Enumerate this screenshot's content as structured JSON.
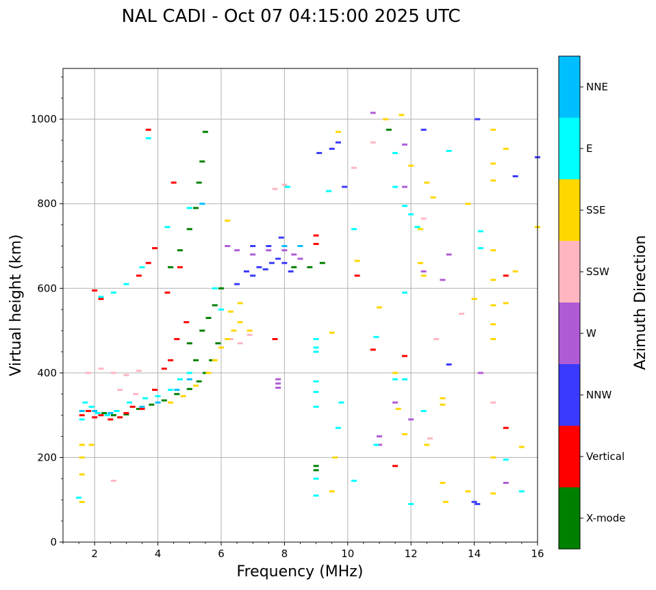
{
  "chart_data": {
    "type": "scatter",
    "title": "NAL CADI - Oct 07 04:15:00 2025 UTC",
    "xlabel": "Frequency (MHz)",
    "ylabel": "Virtual height (km)",
    "xlim": [
      1,
      16
    ],
    "ylim": [
      0,
      1120
    ],
    "x_ticks": [
      2,
      4,
      6,
      8,
      10,
      12,
      14,
      16
    ],
    "y_ticks": [
      0,
      200,
      400,
      600,
      800,
      1000
    ],
    "grid": true,
    "colorbar": {
      "label": "Azimuth Direction",
      "categories": [
        {
          "name": "X-mode",
          "color": "#008000"
        },
        {
          "name": "Vertical",
          "color": "#ff0000"
        },
        {
          "name": "NNW",
          "color": "#3a3aff"
        },
        {
          "name": "W",
          "color": "#b05bd6"
        },
        {
          "name": "SSW",
          "color": "#ffb6c1"
        },
        {
          "name": "SSE",
          "color": "#ffd700"
        },
        {
          "name": "E",
          "color": "#00ffff"
        },
        {
          "name": "NNE",
          "color": "#00bfff"
        }
      ]
    },
    "series": [
      {
        "name": "X-mode",
        "points": [
          [
            2.3,
            305
          ],
          [
            2.6,
            300
          ],
          [
            3.0,
            302
          ],
          [
            3.4,
            315
          ],
          [
            3.8,
            325
          ],
          [
            4.2,
            335
          ],
          [
            4.6,
            350
          ],
          [
            5.0,
            362
          ],
          [
            5.3,
            380
          ],
          [
            5.5,
            400
          ],
          [
            5.7,
            430
          ],
          [
            5.9,
            470
          ],
          [
            5.2,
            430
          ],
          [
            5.0,
            470
          ],
          [
            5.4,
            500
          ],
          [
            5.6,
            530
          ],
          [
            5.8,
            560
          ],
          [
            6.0,
            600
          ],
          [
            4.4,
            650
          ],
          [
            4.7,
            690
          ],
          [
            5.0,
            740
          ],
          [
            5.2,
            790
          ],
          [
            5.3,
            850
          ],
          [
            5.4,
            900
          ],
          [
            5.5,
            970
          ],
          [
            8.3,
            650
          ],
          [
            8.8,
            650
          ],
          [
            9.2,
            660
          ],
          [
            9.0,
            180
          ],
          [
            9.0,
            170
          ],
          [
            11.3,
            975
          ]
        ]
      },
      {
        "name": "Vertical",
        "points": [
          [
            1.6,
            300
          ],
          [
            1.8,
            310
          ],
          [
            2.0,
            295
          ],
          [
            2.2,
            300
          ],
          [
            2.5,
            290
          ],
          [
            2.8,
            295
          ],
          [
            3.0,
            305
          ],
          [
            3.2,
            320
          ],
          [
            3.5,
            315
          ],
          [
            3.9,
            360
          ],
          [
            4.2,
            410
          ],
          [
            4.4,
            430
          ],
          [
            4.6,
            480
          ],
          [
            4.9,
            520
          ],
          [
            4.3,
            590
          ],
          [
            4.7,
            650
          ],
          [
            3.4,
            630
          ],
          [
            3.7,
            660
          ],
          [
            3.9,
            695
          ],
          [
            3.7,
            975
          ],
          [
            4.5,
            850
          ],
          [
            7.7,
            480
          ],
          [
            9.0,
            725
          ],
          [
            9.0,
            705
          ],
          [
            10.8,
            455
          ],
          [
            11.8,
            440
          ],
          [
            11.5,
            180
          ],
          [
            15.0,
            270
          ],
          [
            15.0,
            630
          ],
          [
            10.3,
            630
          ],
          [
            2.0,
            595
          ],
          [
            2.2,
            575
          ]
        ]
      },
      {
        "name": "NNW",
        "points": [
          [
            6.8,
            640
          ],
          [
            7.0,
            630
          ],
          [
            7.2,
            650
          ],
          [
            7.4,
            645
          ],
          [
            7.6,
            660
          ],
          [
            7.8,
            670
          ],
          [
            8.0,
            660
          ],
          [
            8.2,
            640
          ],
          [
            6.5,
            610
          ],
          [
            7.0,
            700
          ],
          [
            7.5,
            700
          ],
          [
            7.9,
            720
          ],
          [
            9.1,
            920
          ],
          [
            9.5,
            930
          ],
          [
            9.7,
            945
          ],
          [
            9.9,
            840
          ],
          [
            12.4,
            975
          ],
          [
            14.1,
            1000
          ],
          [
            15.3,
            865
          ],
          [
            13.2,
            420
          ],
          [
            14.0,
            95
          ],
          [
            14.1,
            90
          ],
          [
            16.0,
            910
          ]
        ]
      },
      {
        "name": "W",
        "points": [
          [
            6.2,
            700
          ],
          [
            6.5,
            690
          ],
          [
            7.0,
            680
          ],
          [
            7.5,
            690
          ],
          [
            8.0,
            690
          ],
          [
            8.3,
            680
          ],
          [
            8.5,
            670
          ],
          [
            7.8,
            385
          ],
          [
            7.8,
            375
          ],
          [
            7.8,
            365
          ],
          [
            10.8,
            1015
          ],
          [
            11.8,
            940
          ],
          [
            11.8,
            840
          ],
          [
            12.4,
            640
          ],
          [
            13.0,
            620
          ],
          [
            13.2,
            680
          ],
          [
            12.0,
            290
          ],
          [
            11.5,
            330
          ],
          [
            15.0,
            140
          ],
          [
            14.2,
            400
          ],
          [
            11.0,
            250
          ],
          [
            11.0,
            230
          ]
        ]
      },
      {
        "name": "SSW",
        "points": [
          [
            1.8,
            400
          ],
          [
            2.2,
            410
          ],
          [
            2.6,
            400
          ],
          [
            3.0,
            395
          ],
          [
            3.4,
            405
          ],
          [
            2.8,
            360
          ],
          [
            3.3,
            350
          ],
          [
            6.3,
            480
          ],
          [
            6.6,
            470
          ],
          [
            6.9,
            490
          ],
          [
            7.7,
            835
          ],
          [
            8.0,
            845
          ],
          [
            10.2,
            885
          ],
          [
            10.8,
            945
          ],
          [
            11.2,
            1000
          ],
          [
            12.6,
            245
          ],
          [
            12.8,
            480
          ],
          [
            12.4,
            765
          ],
          [
            14.6,
            330
          ],
          [
            13.6,
            540
          ],
          [
            2.6,
            145
          ]
        ]
      },
      {
        "name": "SSE",
        "points": [
          [
            1.6,
            95
          ],
          [
            1.6,
            160
          ],
          [
            1.6,
            200
          ],
          [
            1.6,
            230
          ],
          [
            1.9,
            230
          ],
          [
            4.4,
            330
          ],
          [
            4.8,
            345
          ],
          [
            5.2,
            370
          ],
          [
            5.6,
            400
          ],
          [
            5.8,
            430
          ],
          [
            6.0,
            460
          ],
          [
            6.2,
            480
          ],
          [
            6.4,
            500
          ],
          [
            6.6,
            520
          ],
          [
            6.9,
            500
          ],
          [
            6.3,
            545
          ],
          [
            6.6,
            565
          ],
          [
            6.2,
            760
          ],
          [
            9.5,
            495
          ],
          [
            9.6,
            200
          ],
          [
            9.5,
            120
          ],
          [
            9.7,
            970
          ],
          [
            11.7,
            1010
          ],
          [
            12.0,
            890
          ],
          [
            12.5,
            850
          ],
          [
            12.7,
            815
          ],
          [
            12.3,
            740
          ],
          [
            12.3,
            660
          ],
          [
            12.4,
            630
          ],
          [
            13.0,
            340
          ],
          [
            13.0,
            325
          ],
          [
            13.0,
            140
          ],
          [
            13.8,
            800
          ],
          [
            14.0,
            575
          ],
          [
            14.6,
            975
          ],
          [
            14.6,
            895
          ],
          [
            14.6,
            855
          ],
          [
            14.6,
            690
          ],
          [
            14.6,
            620
          ],
          [
            14.6,
            560
          ],
          [
            14.6,
            515
          ],
          [
            14.6,
            480
          ],
          [
            14.6,
            200
          ],
          [
            14.6,
            115
          ],
          [
            15.0,
            930
          ],
          [
            15.0,
            565
          ],
          [
            15.3,
            640
          ],
          [
            15.5,
            225
          ],
          [
            16.0,
            745
          ],
          [
            10.3,
            665
          ],
          [
            11.0,
            555
          ],
          [
            11.2,
            1000
          ],
          [
            11.5,
            400
          ],
          [
            11.6,
            315
          ],
          [
            11.8,
            255
          ],
          [
            12.5,
            230
          ],
          [
            13.1,
            95
          ],
          [
            13.8,
            120
          ]
        ]
      },
      {
        "name": "E",
        "points": [
          [
            1.5,
            105
          ],
          [
            1.6,
            290
          ],
          [
            1.7,
            330
          ],
          [
            1.9,
            320
          ],
          [
            2.1,
            305
          ],
          [
            2.4,
            300
          ],
          [
            2.7,
            310
          ],
          [
            3.1,
            330
          ],
          [
            3.6,
            340
          ],
          [
            4.0,
            345
          ],
          [
            4.4,
            360
          ],
          [
            4.7,
            385
          ],
          [
            5.0,
            400
          ],
          [
            2.2,
            580
          ],
          [
            2.6,
            590
          ],
          [
            3.0,
            610
          ],
          [
            3.5,
            650
          ],
          [
            4.3,
            745
          ],
          [
            5.0,
            790
          ],
          [
            5.8,
            600
          ],
          [
            6.0,
            550
          ],
          [
            3.7,
            955
          ],
          [
            8.1,
            840
          ],
          [
            9.0,
            480
          ],
          [
            9.0,
            460
          ],
          [
            9.0,
            450
          ],
          [
            9.0,
            380
          ],
          [
            9.0,
            355
          ],
          [
            9.0,
            320
          ],
          [
            9.0,
            150
          ],
          [
            9.0,
            110
          ],
          [
            9.4,
            830
          ],
          [
            10.2,
            740
          ],
          [
            10.9,
            485
          ],
          [
            10.9,
            230
          ],
          [
            11.5,
            840
          ],
          [
            11.5,
            920
          ],
          [
            11.5,
            385
          ],
          [
            11.8,
            795
          ],
          [
            11.8,
            590
          ],
          [
            11.8,
            385
          ],
          [
            12.0,
            775
          ],
          [
            12.0,
            90
          ],
          [
            12.2,
            745
          ],
          [
            12.4,
            310
          ],
          [
            13.2,
            925
          ],
          [
            14.2,
            735
          ],
          [
            14.2,
            695
          ],
          [
            15.0,
            195
          ],
          [
            15.5,
            120
          ],
          [
            10.2,
            145
          ],
          [
            9.8,
            330
          ],
          [
            9.7,
            270
          ]
        ]
      },
      {
        "name": "NNE",
        "points": [
          [
            1.6,
            310
          ],
          [
            2.0,
            310
          ],
          [
            2.5,
            305
          ],
          [
            3.5,
            320
          ],
          [
            4.0,
            330
          ],
          [
            4.6,
            360
          ],
          [
            5.0,
            385
          ],
          [
            5.4,
            800
          ],
          [
            8.0,
            700
          ],
          [
            8.5,
            700
          ]
        ]
      }
    ]
  }
}
